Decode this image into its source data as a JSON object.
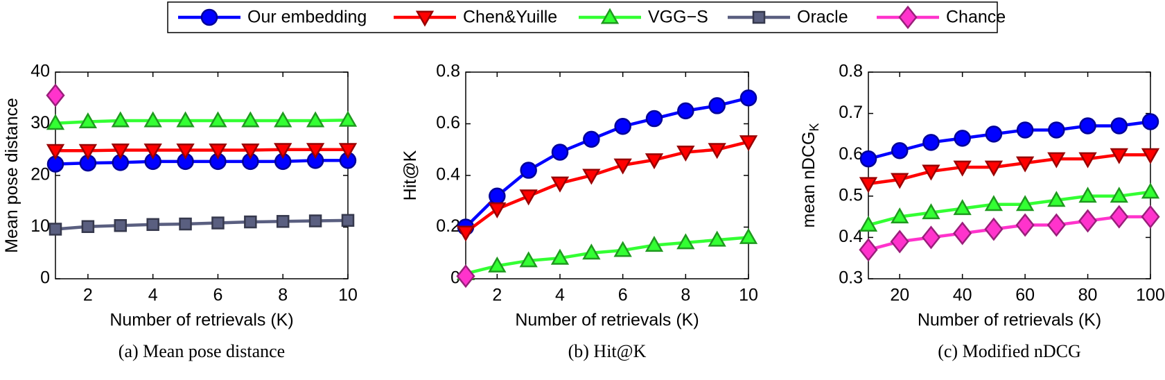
{
  "chart_data": [
    {
      "type": "line",
      "legend": "top-outside",
      "caption": "(a) Mean pose distance",
      "x_label": "Number of retrievals (K)",
      "y_label": "Mean pose distance",
      "x": [
        1,
        2,
        3,
        4,
        5,
        6,
        7,
        8,
        9,
        10
      ],
      "xlim": [
        1,
        10
      ],
      "xticks": [
        2,
        4,
        6,
        8,
        10
      ],
      "ylim": [
        0,
        40
      ],
      "yticks": [
        0,
        10,
        20,
        30,
        40
      ],
      "series": [
        {
          "name": "Our embedding",
          "color": "#0000ff",
          "marker": "circle",
          "values": [
            22.2,
            22.4,
            22.5,
            22.7,
            22.7,
            22.7,
            22.7,
            22.7,
            22.9,
            22.9
          ]
        },
        {
          "name": "Chen&Yuille",
          "color": "#ff0000",
          "marker": "triangle-down",
          "values": [
            24.8,
            24.8,
            24.9,
            24.9,
            24.9,
            24.9,
            24.9,
            25.0,
            25.0,
            25.0
          ]
        },
        {
          "name": "VGG−S",
          "color": "#33ff33",
          "marker": "triangle-up",
          "values": [
            30.1,
            30.4,
            30.6,
            30.6,
            30.6,
            30.6,
            30.6,
            30.6,
            30.6,
            30.7
          ]
        },
        {
          "name": "Oracle",
          "color": "#5a5f80",
          "marker": "square",
          "values": [
            9.6,
            10.1,
            10.3,
            10.5,
            10.6,
            10.8,
            11.0,
            11.1,
            11.2,
            11.3
          ]
        },
        {
          "name": "Chance",
          "color": "#ff33cc",
          "marker": "diamond",
          "values": [
            35.5,
            null,
            null,
            null,
            null,
            null,
            null,
            null,
            null,
            null
          ]
        }
      ]
    },
    {
      "type": "line",
      "caption": "(b) Hit@K",
      "x_label": "Number of retrievals (K)",
      "y_label": "Hit@K",
      "x": [
        1,
        2,
        3,
        4,
        5,
        6,
        7,
        8,
        9,
        10
      ],
      "xlim": [
        1,
        10
      ],
      "xticks": [
        2,
        4,
        6,
        8,
        10
      ],
      "ylim": [
        0,
        0.8
      ],
      "yticks": [
        0,
        0.2,
        0.4,
        0.6,
        0.8
      ],
      "series": [
        {
          "name": "Our embedding",
          "color": "#0000ff",
          "marker": "circle",
          "values": [
            0.2,
            0.32,
            0.42,
            0.49,
            0.54,
            0.59,
            0.62,
            0.65,
            0.67,
            0.7
          ]
        },
        {
          "name": "Chen&Yuille",
          "color": "#ff0000",
          "marker": "triangle-down",
          "values": [
            0.18,
            0.27,
            0.32,
            0.37,
            0.4,
            0.44,
            0.46,
            0.49,
            0.5,
            0.53
          ]
        },
        {
          "name": "VGG−S",
          "color": "#33ff33",
          "marker": "triangle-up",
          "values": [
            0.02,
            0.05,
            0.07,
            0.08,
            0.1,
            0.11,
            0.13,
            0.14,
            0.15,
            0.16
          ]
        },
        {
          "name": "Chance",
          "color": "#ff33cc",
          "marker": "diamond",
          "values": [
            0.01,
            null,
            null,
            null,
            null,
            null,
            null,
            null,
            null,
            null
          ]
        }
      ]
    },
    {
      "type": "line",
      "caption": "(c) Modified nDCG",
      "x_label": "Number of retrievals (K)",
      "y_label": "mean nDCG",
      "y_label_subscript": "K",
      "x": [
        10,
        20,
        30,
        40,
        50,
        60,
        70,
        80,
        90,
        100
      ],
      "xlim": [
        10,
        100
      ],
      "xticks": [
        20,
        40,
        60,
        80,
        100
      ],
      "ylim": [
        0.3,
        0.8
      ],
      "yticks": [
        0.3,
        0.4,
        0.5,
        0.6,
        0.7,
        0.8
      ],
      "series": [
        {
          "name": "Our embedding",
          "color": "#0000ff",
          "marker": "circle",
          "values": [
            0.59,
            0.61,
            0.63,
            0.64,
            0.65,
            0.66,
            0.66,
            0.67,
            0.67,
            0.68
          ]
        },
        {
          "name": "Chen&Yuille",
          "color": "#ff0000",
          "marker": "triangle-down",
          "values": [
            0.53,
            0.54,
            0.56,
            0.57,
            0.57,
            0.58,
            0.59,
            0.59,
            0.6,
            0.6
          ]
        },
        {
          "name": "VGG−S",
          "color": "#33ff33",
          "marker": "triangle-up",
          "values": [
            0.43,
            0.45,
            0.46,
            0.47,
            0.48,
            0.48,
            0.49,
            0.5,
            0.5,
            0.51
          ]
        },
        {
          "name": "Chance",
          "color": "#ff33cc",
          "marker": "diamond",
          "values": [
            0.37,
            0.39,
            0.4,
            0.41,
            0.42,
            0.43,
            0.43,
            0.44,
            0.45,
            0.45
          ]
        }
      ]
    }
  ]
}
